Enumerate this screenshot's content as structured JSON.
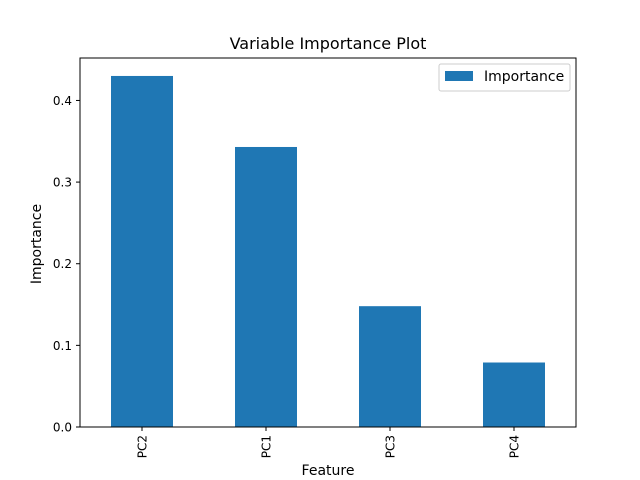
{
  "chart_data": {
    "type": "bar",
    "title": "Variable Importance Plot",
    "xlabel": "Feature",
    "ylabel": "Importance",
    "categories": [
      "PC2",
      "PC1",
      "PC3",
      "PC4"
    ],
    "series": [
      {
        "name": "Importance",
        "values": [
          0.43,
          0.343,
          0.148,
          0.079
        ],
        "color": "#1f77b4"
      }
    ],
    "ylim": [
      0,
      0.452
    ],
    "yticks": [
      0.0,
      0.1,
      0.2,
      0.3,
      0.4
    ],
    "ytick_labels": [
      "0.0",
      "0.1",
      "0.2",
      "0.3",
      "0.4"
    ],
    "grid": false,
    "legend_position": "top-right",
    "xtick_rotation": "vertical"
  }
}
